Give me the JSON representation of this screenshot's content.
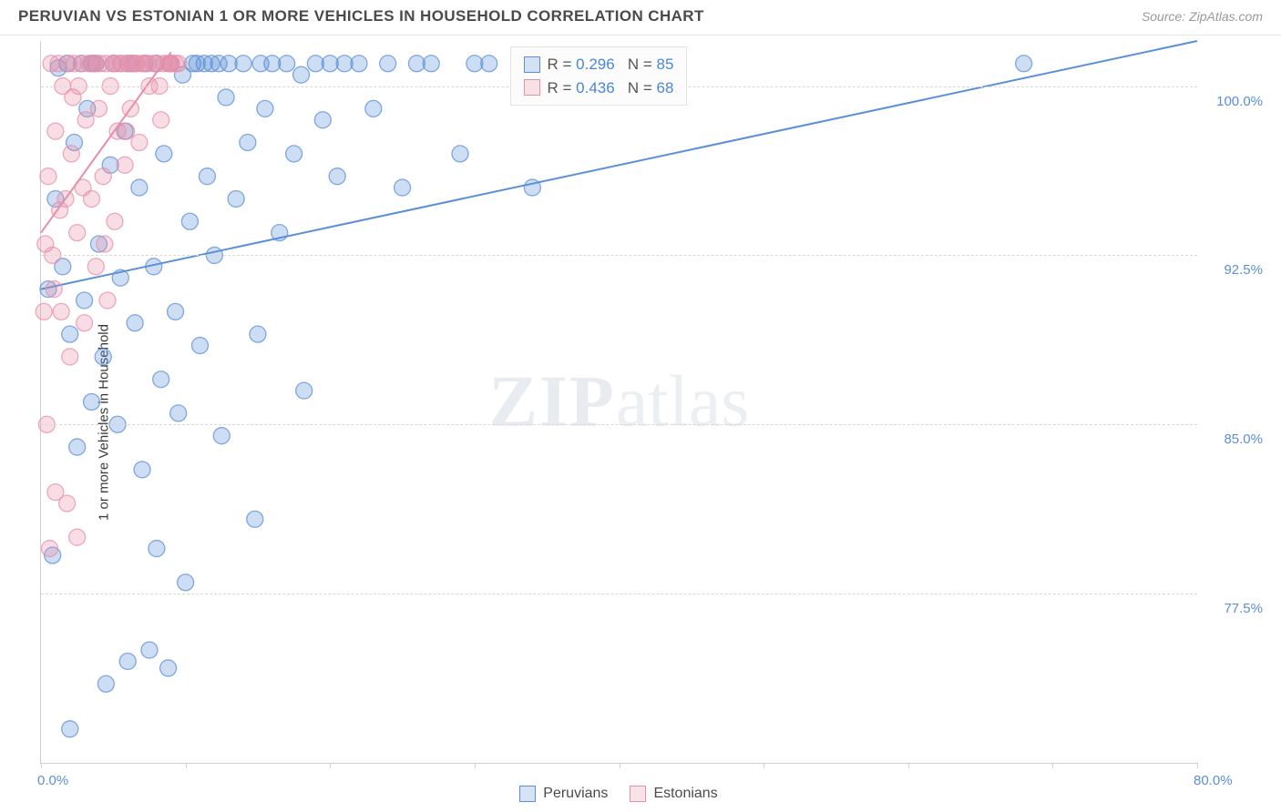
{
  "header": {
    "title": "PERUVIAN VS ESTONIAN 1 OR MORE VEHICLES IN HOUSEHOLD CORRELATION CHART",
    "source_label": "Source: ZipAtlas.com"
  },
  "chart": {
    "type": "scatter",
    "ylabel": "1 or more Vehicles in Household",
    "xlim": [
      0,
      80
    ],
    "ylim": [
      70,
      102
    ],
    "ytick_values": [
      77.5,
      85.0,
      92.5,
      100.0
    ],
    "ytick_labels": [
      "77.5%",
      "85.0%",
      "92.5%",
      "100.0%"
    ],
    "xtick_values": [
      0,
      40,
      80
    ],
    "xtick_labels": [
      "0.0%",
      "",
      "80.0%"
    ],
    "xtick_minor": [
      0,
      10,
      20,
      30,
      40,
      50,
      60,
      70,
      80
    ],
    "grid_color": "#d8d8d8",
    "axis_color": "#cfcfcf",
    "background_color": "#ffffff",
    "label_fontsize": 15,
    "title_fontsize": 17,
    "marker_radius": 9,
    "marker_fill_opacity": 0.3,
    "marker_stroke_opacity": 0.75,
    "line_width": 2,
    "series": [
      {
        "name": "Peruvians",
        "color": "#5b8fd6",
        "R": 0.296,
        "N": 85,
        "trend": {
          "x1": 0,
          "y1": 91.0,
          "x2": 80,
          "y2": 102.0
        },
        "points": [
          [
            0.5,
            91.0
          ],
          [
            0.8,
            79.2
          ],
          [
            1.0,
            95.0
          ],
          [
            1.2,
            100.8
          ],
          [
            1.5,
            92.0
          ],
          [
            1.8,
            101.0
          ],
          [
            2.0,
            89.0
          ],
          [
            2.3,
            97.5
          ],
          [
            2.5,
            84.0
          ],
          [
            2.8,
            101.0
          ],
          [
            3.0,
            90.5
          ],
          [
            3.2,
            99.0
          ],
          [
            3.5,
            86.0
          ],
          [
            3.8,
            101.0
          ],
          [
            4.0,
            93.0
          ],
          [
            4.3,
            88.0
          ],
          [
            4.5,
            73.5
          ],
          [
            4.8,
            96.5
          ],
          [
            5.0,
            101.0
          ],
          [
            5.3,
            85.0
          ],
          [
            5.5,
            91.5
          ],
          [
            5.8,
            98.0
          ],
          [
            6.0,
            74.5
          ],
          [
            6.3,
            101.0
          ],
          [
            6.5,
            89.5
          ],
          [
            6.8,
            95.5
          ],
          [
            7.0,
            83.0
          ],
          [
            7.2,
            101.0
          ],
          [
            7.5,
            75.0
          ],
          [
            7.8,
            92.0
          ],
          [
            8.0,
            101.0
          ],
          [
            8.3,
            87.0
          ],
          [
            8.5,
            97.0
          ],
          [
            8.8,
            74.2
          ],
          [
            9.0,
            101.0
          ],
          [
            9.3,
            90.0
          ],
          [
            9.5,
            85.5
          ],
          [
            9.8,
            100.5
          ],
          [
            10.0,
            78.0
          ],
          [
            10.3,
            94.0
          ],
          [
            10.5,
            101.0
          ],
          [
            10.8,
            101.0
          ],
          [
            11.0,
            88.5
          ],
          [
            11.3,
            101.0
          ],
          [
            11.5,
            96.0
          ],
          [
            11.8,
            101.0
          ],
          [
            12.0,
            92.5
          ],
          [
            12.3,
            101.0
          ],
          [
            12.5,
            84.5
          ],
          [
            12.8,
            99.5
          ],
          [
            13.0,
            101.0
          ],
          [
            13.5,
            95.0
          ],
          [
            14.0,
            101.0
          ],
          [
            14.3,
            97.5
          ],
          [
            14.8,
            80.8
          ],
          [
            15.0,
            89.0
          ],
          [
            15.2,
            101.0
          ],
          [
            15.5,
            99.0
          ],
          [
            16.0,
            101.0
          ],
          [
            16.5,
            93.5
          ],
          [
            17.0,
            101.0
          ],
          [
            17.5,
            97.0
          ],
          [
            18.0,
            100.5
          ],
          [
            18.2,
            86.5
          ],
          [
            19.0,
            101.0
          ],
          [
            19.5,
            98.5
          ],
          [
            20.0,
            101.0
          ],
          [
            20.5,
            96.0
          ],
          [
            21.0,
            101.0
          ],
          [
            22.0,
            101.0
          ],
          [
            23.0,
            99.0
          ],
          [
            24.0,
            101.0
          ],
          [
            25.0,
            95.5
          ],
          [
            26.0,
            101.0
          ],
          [
            27.0,
            101.0
          ],
          [
            29.0,
            97.0
          ],
          [
            30.0,
            101.0
          ],
          [
            31.0,
            101.0
          ],
          [
            34.0,
            95.5
          ],
          [
            35.0,
            101.0
          ],
          [
            68.0,
            101.0
          ],
          [
            2.0,
            71.5
          ],
          [
            3.5,
            101.0
          ],
          [
            6.0,
            101.0
          ],
          [
            8.0,
            79.5
          ]
        ]
      },
      {
        "name": "Estonians",
        "color": "#e78fa8",
        "R": 0.436,
        "N": 68,
        "trend": {
          "x1": 0,
          "y1": 93.5,
          "x2": 9.0,
          "y2": 101.5
        },
        "points": [
          [
            0.3,
            93.0
          ],
          [
            0.5,
            96.0
          ],
          [
            0.7,
            101.0
          ],
          [
            0.9,
            91.0
          ],
          [
            1.0,
            98.0
          ],
          [
            1.2,
            101.0
          ],
          [
            1.4,
            90.0
          ],
          [
            1.5,
            100.0
          ],
          [
            1.7,
            95.0
          ],
          [
            1.9,
            101.0
          ],
          [
            2.0,
            88.0
          ],
          [
            2.1,
            97.0
          ],
          [
            2.3,
            101.0
          ],
          [
            2.5,
            93.5
          ],
          [
            2.6,
            100.0
          ],
          [
            2.8,
            101.0
          ],
          [
            3.0,
            89.5
          ],
          [
            3.1,
            98.5
          ],
          [
            3.3,
            101.0
          ],
          [
            3.5,
            95.0
          ],
          [
            3.6,
            101.0
          ],
          [
            3.8,
            92.0
          ],
          [
            4.0,
            99.0
          ],
          [
            4.1,
            101.0
          ],
          [
            4.3,
            96.0
          ],
          [
            4.5,
            101.0
          ],
          [
            4.6,
            90.5
          ],
          [
            4.8,
            100.0
          ],
          [
            5.0,
            101.0
          ],
          [
            5.1,
            94.0
          ],
          [
            5.3,
            98.0
          ],
          [
            5.5,
            101.0
          ],
          [
            5.6,
            101.0
          ],
          [
            5.8,
            96.5
          ],
          [
            6.0,
            101.0
          ],
          [
            6.2,
            99.0
          ],
          [
            6.3,
            101.0
          ],
          [
            6.5,
            101.0
          ],
          [
            6.8,
            97.5
          ],
          [
            7.0,
            101.0
          ],
          [
            7.2,
            101.0
          ],
          [
            7.5,
            100.0
          ],
          [
            7.8,
            101.0
          ],
          [
            8.0,
            101.0
          ],
          [
            8.3,
            98.5
          ],
          [
            8.5,
            101.0
          ],
          [
            8.8,
            101.0
          ],
          [
            9.0,
            101.0
          ],
          [
            9.5,
            101.0
          ],
          [
            0.4,
            85.0
          ],
          [
            1.0,
            82.0
          ],
          [
            1.8,
            81.5
          ],
          [
            2.5,
            80.0
          ],
          [
            0.6,
            79.5
          ],
          [
            0.2,
            90.0
          ],
          [
            0.8,
            92.5
          ],
          [
            1.3,
            94.5
          ],
          [
            2.2,
            99.5
          ],
          [
            2.9,
            95.5
          ],
          [
            3.7,
            101.0
          ],
          [
            4.4,
            93.0
          ],
          [
            5.2,
            101.0
          ],
          [
            5.9,
            98.0
          ],
          [
            6.6,
            101.0
          ],
          [
            7.4,
            101.0
          ],
          [
            8.2,
            100.0
          ],
          [
            8.9,
            101.0
          ],
          [
            9.3,
            101.0
          ]
        ]
      }
    ],
    "legend_box": {
      "series1_swatch": "#5b8fd6",
      "series2_swatch": "#e78fa8",
      "r_label": "R =",
      "n_label": "N ="
    },
    "footer_legend": {
      "series1": "Peruvians",
      "series2": "Estonians"
    },
    "watermark": {
      "bold": "ZIP",
      "rest": "atlas"
    }
  }
}
